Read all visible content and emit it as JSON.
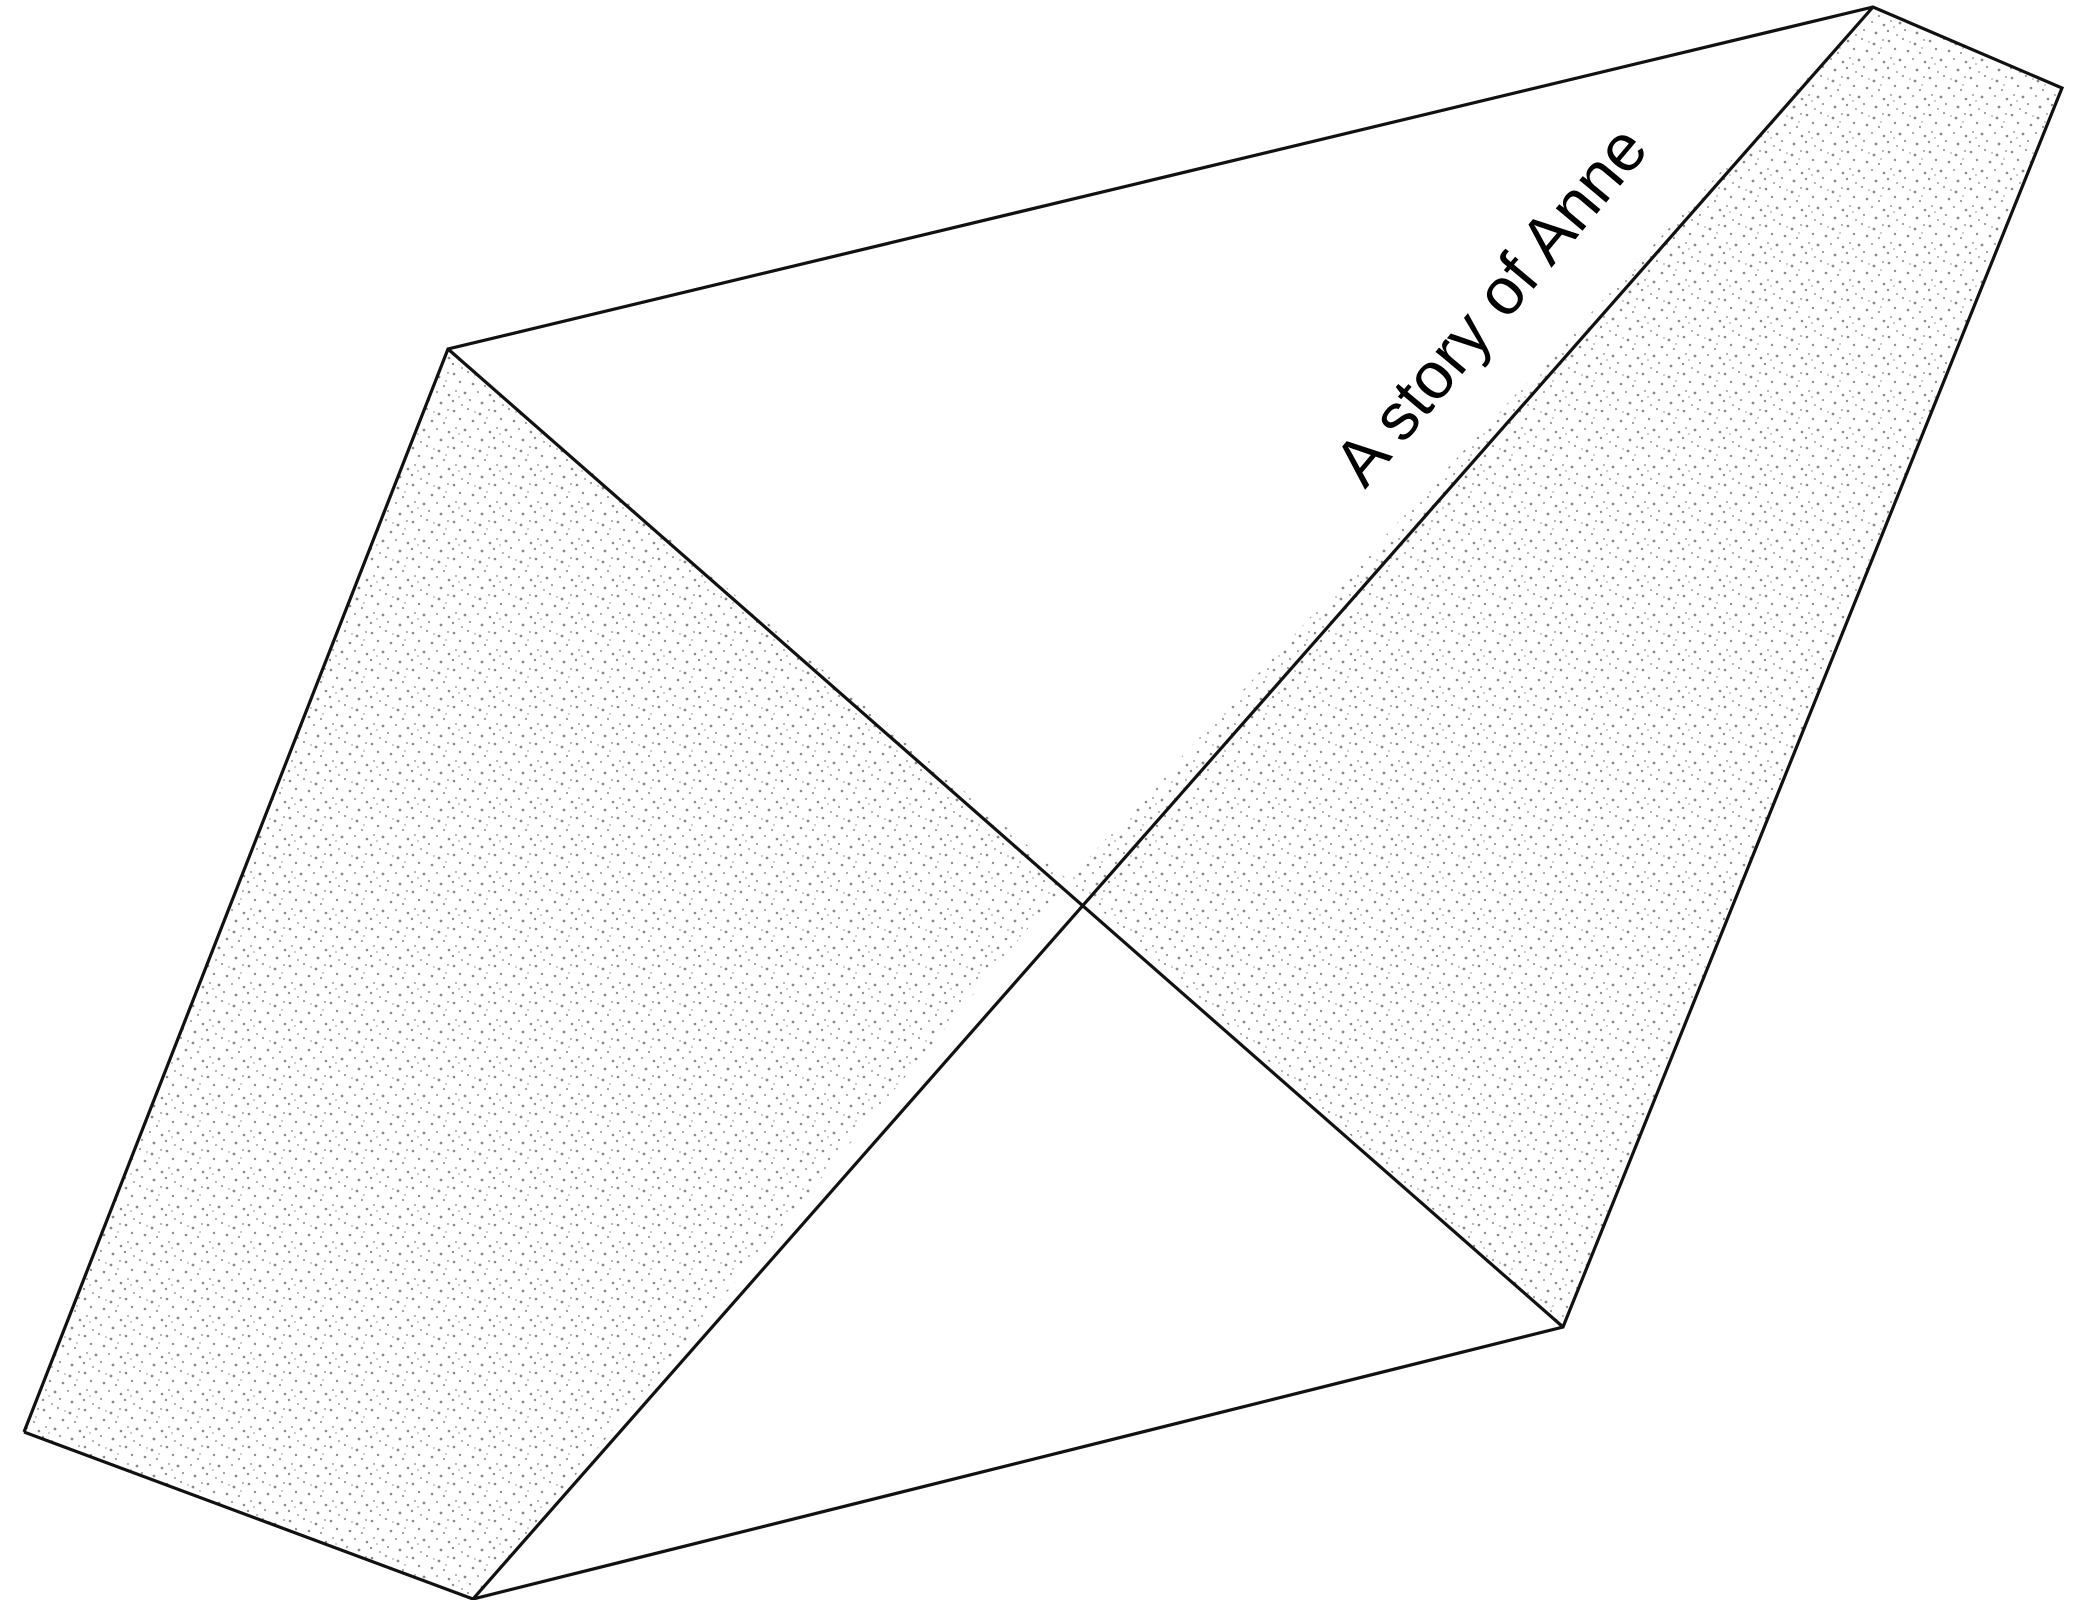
{
  "figure": {
    "label": "A story of Anne",
    "colors": {
      "stroke": "#111111",
      "stipple": "#8a8a8a",
      "background": "#ffffff",
      "text": "#000000"
    }
  }
}
